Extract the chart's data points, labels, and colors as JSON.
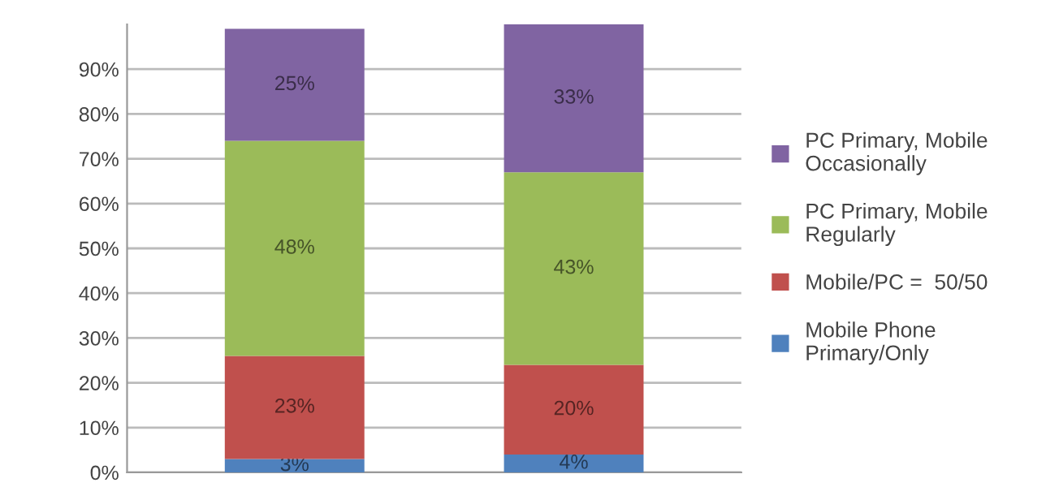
{
  "chart_data": {
    "type": "bar",
    "stacked": true,
    "categories": [
      null,
      null
    ],
    "series": [
      {
        "name": "Mobile Phone Primary/Only",
        "color": "#4f81bd",
        "values": [
          3,
          4
        ],
        "value_labels": [
          "3%",
          "4%"
        ]
      },
      {
        "name": "Mobile/PC =  50/50",
        "color": "#c0504d",
        "values": [
          23,
          20
        ],
        "value_labels": [
          "23%",
          "20%"
        ]
      },
      {
        "name": "PC Primary, Mobile Regularly",
        "color": "#9bbb59",
        "values": [
          48,
          43
        ],
        "value_labels": [
          "48%",
          "43%"
        ]
      },
      {
        "name": "PC Primary, Mobile Occasionally",
        "color": "#8064a2",
        "values": [
          25,
          33
        ],
        "value_labels": [
          "25%",
          "33%"
        ]
      }
    ],
    "ylim": [
      0,
      100
    ],
    "yticks": [
      {
        "value": 0,
        "label": "0%"
      },
      {
        "value": 10,
        "label": "10%"
      },
      {
        "value": 20,
        "label": "20%"
      },
      {
        "value": 30,
        "label": "30%"
      },
      {
        "value": 40,
        "label": "40%"
      },
      {
        "value": 50,
        "label": "50%"
      },
      {
        "value": 60,
        "label": "60%"
      },
      {
        "value": 70,
        "label": "70%"
      },
      {
        "value": 80,
        "label": "80%"
      },
      {
        "value": 90,
        "label": "90%"
      }
    ],
    "grid": "y",
    "legend": "right"
  }
}
